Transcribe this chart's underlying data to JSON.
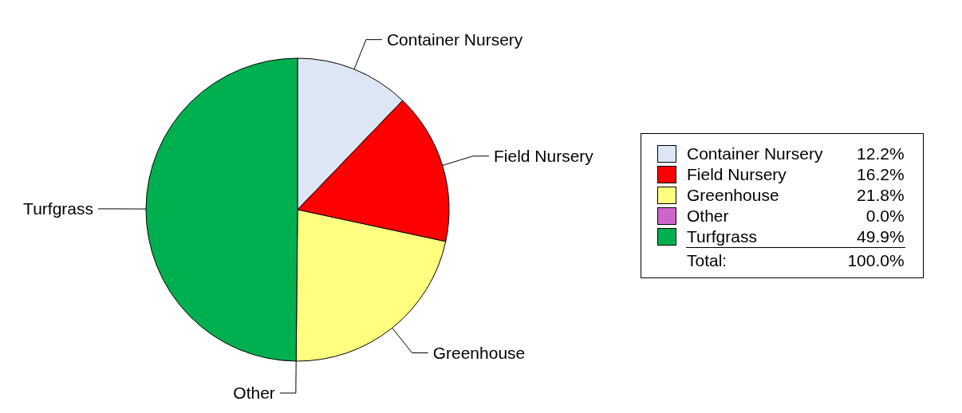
{
  "chart_data": {
    "type": "pie",
    "categories": [
      "Container Nursery",
      "Field Nursery",
      "Greenhouse",
      "Other",
      "Turfgrass"
    ],
    "values": [
      12.2,
      16.2,
      21.8,
      0.0,
      49.9
    ],
    "value_labels": [
      "12.2%",
      "16.2%",
      "21.8%",
      "0.0%",
      "49.9%"
    ],
    "colors": [
      "#dce6f5",
      "#ff0000",
      "#ffff80",
      "#cc66cc",
      "#00b050"
    ],
    "legend": "right",
    "annotations": [
      "Total:",
      "100.0%"
    ]
  }
}
